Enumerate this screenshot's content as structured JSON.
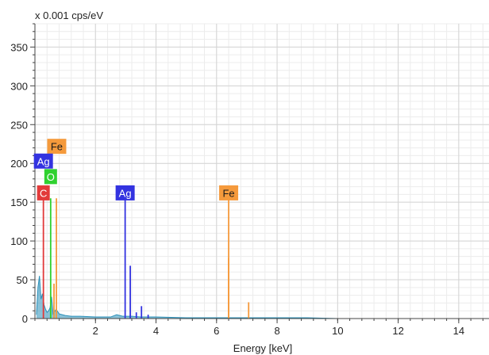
{
  "chart_data": {
    "type": "line",
    "ylabel": "x 0.001 cps/eV",
    "xlabel": "Energy [keV]",
    "xlim": [
      0,
      15
    ],
    "ylim": [
      0,
      380
    ],
    "x_ticks": [
      2,
      4,
      6,
      8,
      10,
      12,
      14
    ],
    "y_ticks": [
      0,
      50,
      100,
      150,
      200,
      250,
      300,
      350
    ],
    "grid": true,
    "colors": {
      "spectrum": "#2a8fb8",
      "Ag": "#3333e0",
      "Fe": "#f59a3c",
      "O": "#2fd12f",
      "C": "#e23a3a"
    },
    "peak_lines": [
      {
        "element": "C",
        "energy": 0.28,
        "value": 155
      },
      {
        "element": "O",
        "energy": 0.52,
        "value": 155
      },
      {
        "element": "Fe",
        "energy": 0.63,
        "value": 45
      },
      {
        "element": "Fe",
        "energy": 0.71,
        "value": 155
      },
      {
        "element": "Ag",
        "energy": 2.98,
        "value": 155
      },
      {
        "element": "Ag",
        "energy": 3.15,
        "value": 68
      },
      {
        "element": "Ag",
        "energy": 3.35,
        "value": 8
      },
      {
        "element": "Ag",
        "energy": 3.52,
        "value": 16
      },
      {
        "element": "Ag",
        "energy": 3.74,
        "value": 5
      },
      {
        "element": "Fe",
        "energy": 6.4,
        "value": 155
      },
      {
        "element": "Fe",
        "energy": 6.4,
        "value": 78
      },
      {
        "element": "Fe",
        "energy": 7.06,
        "value": 21
      }
    ],
    "spectrum": {
      "name": "spectrum",
      "x": [
        0.05,
        0.1,
        0.15,
        0.2,
        0.25,
        0.3,
        0.35,
        0.4,
        0.45,
        0.5,
        0.55,
        0.6,
        0.65,
        0.7,
        0.8,
        0.9,
        1.0,
        1.2,
        1.5,
        2.0,
        2.5,
        2.7,
        2.9,
        3.2,
        3.5,
        4.0,
        5.0,
        6.0,
        7.0,
        8.0,
        9.0,
        10.0,
        12.0,
        14.0,
        15.0
      ],
      "y": [
        5,
        40,
        55,
        25,
        32,
        18,
        12,
        8,
        10,
        14,
        28,
        6,
        9,
        12,
        6,
        5,
        4,
        3,
        3,
        2,
        2,
        5,
        3,
        3,
        2,
        2,
        1,
        1,
        1,
        1,
        1,
        0,
        0,
        0,
        0
      ]
    },
    "labels": [
      {
        "text": "Fe",
        "element": "Fe",
        "energy": 0.72,
        "value": 222
      },
      {
        "text": "Ag",
        "element": "Ag",
        "energy": 0.28,
        "value": 203
      },
      {
        "text": "O",
        "element": "O",
        "energy": 0.52,
        "value": 183
      },
      {
        "text": "C",
        "element": "C",
        "energy": 0.28,
        "value": 162
      },
      {
        "text": "Ag",
        "element": "Ag",
        "energy": 2.98,
        "value": 162
      },
      {
        "text": "Fe",
        "element": "Fe",
        "energy": 6.4,
        "value": 162
      }
    ]
  }
}
